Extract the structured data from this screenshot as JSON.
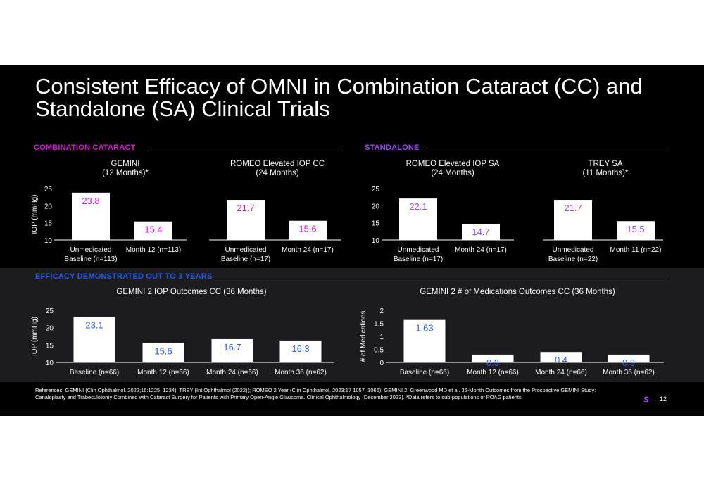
{
  "title": "Consistent Efficacy of OMNI in Combination Cataract (CC) and Standalone (SA) Clinical Trials",
  "sections": {
    "combination": "COMBINATION CATARACT",
    "standalone": "STANDALONE",
    "efficacy": "EFFICACY DEMONSTRATED OUT TO 3 YEARS"
  },
  "colors": {
    "magenta": "#d81bd1",
    "purple": "#9b4cf0",
    "blue": "#2a5be6",
    "bar": "#ffffff",
    "band": "#1c1c1e"
  },
  "chart_data": [
    {
      "type": "bar",
      "title": [
        "GEMINI",
        "(12 Months)*"
      ],
      "ylabel": "IOP (mmHg)",
      "ylim": [
        10,
        25
      ],
      "yticks": [
        10,
        15,
        20,
        25
      ],
      "categories": [
        [
          "Unmedicated",
          "Baseline (n=113)"
        ],
        [
          "Month 12 (n=113)"
        ]
      ],
      "values": [
        23.8,
        15.4
      ],
      "labels": [
        "23.8",
        "15.4"
      ],
      "label_color": "#d81bd1"
    },
    {
      "type": "bar",
      "title": [
        "ROMEO Elevated IOP CC",
        "(24 Months)"
      ],
      "ylabel": "",
      "ylim": [
        10,
        25
      ],
      "yticks": [],
      "categories": [
        [
          "Unmedicated",
          "Baseline (n=17)"
        ],
        [
          "Month 24 (n=17)"
        ]
      ],
      "values": [
        21.7,
        15.6
      ],
      "labels": [
        "21.7",
        "15.6"
      ],
      "label_color": "#d81bd1"
    },
    {
      "type": "bar",
      "title": [
        "ROMEO Elevated IOP SA",
        "(24 Months)"
      ],
      "ylabel": "",
      "ylim": [
        10,
        25
      ],
      "yticks": [
        10,
        15,
        20,
        25
      ],
      "categories": [
        [
          "Unmedicated",
          "Baseline (n=17)"
        ],
        [
          "Month 24 (n=17)"
        ]
      ],
      "values": [
        22.1,
        14.7
      ],
      "labels": [
        "22.1",
        "14.7"
      ],
      "label_color": "#9b4cf0"
    },
    {
      "type": "bar",
      "title": [
        "TREY SA",
        "(11 Months)*"
      ],
      "ylabel": "",
      "ylim": [
        10,
        25
      ],
      "yticks": [],
      "categories": [
        [
          "Unmedicated",
          "Baseline (n=22)"
        ],
        [
          "Month 11 (n=22)"
        ]
      ],
      "values": [
        21.7,
        15.5
      ],
      "labels": [
        "21.7",
        "15.5"
      ],
      "label_color": "#9b4cf0"
    },
    {
      "type": "bar",
      "title": [
        "GEMINI 2 IOP Outcomes CC (36 Months)"
      ],
      "ylabel": "IOP (mmHg)",
      "ylim": [
        10,
        25
      ],
      "yticks": [
        10,
        15,
        20,
        25
      ],
      "categories": [
        [
          "Baseline (n=66)"
        ],
        [
          "Month 12 (n=66)"
        ],
        [
          "Month 24 (n=66)"
        ],
        [
          "Month 36 (n=62)"
        ]
      ],
      "values": [
        23.1,
        15.6,
        16.7,
        16.3
      ],
      "labels": [
        "23.1",
        "15.6",
        "16.7",
        "16.3"
      ],
      "label_color": "#2a5be6"
    },
    {
      "type": "bar",
      "title": [
        "GEMINI 2 # of Medications Outcomes CC (36 Months)"
      ],
      "ylabel": "# of Medications",
      "ylim": [
        0,
        2
      ],
      "yticks": [
        0,
        0.5,
        1,
        1.5,
        2
      ],
      "categories": [
        [
          "Baseline (n=66)"
        ],
        [
          "Month 12 (n=66)"
        ],
        [
          "Month 24 (n=66)"
        ],
        [
          "Month 36 (n=62)"
        ]
      ],
      "values": [
        1.63,
        0.3,
        0.4,
        0.3
      ],
      "labels": [
        "1.63",
        "0.3",
        "0.4",
        "0.3"
      ],
      "label_color": "#2a5be6"
    }
  ],
  "footer": {
    "references": "References: GEMINI (Clin Ophthalmol. 2022;16:1225–1234); TREY (Int Ophthalmol (2022)); ROMEO 2 Year (Clin Ophthalmol. 2023:17 1057–1066); GEMINI 2: Greenwood MD et al. 36-Month Outcomes from the Prospective GEMINI Study: Canaloplasty and Trabeculotomy Combined with Cataract Surgery for Patients with Primary Open-Angle Glaucoma. Clinical Ophthalmology (December 2023). *Data refers to sub-populations of POAG patients",
    "page_number": "12"
  }
}
